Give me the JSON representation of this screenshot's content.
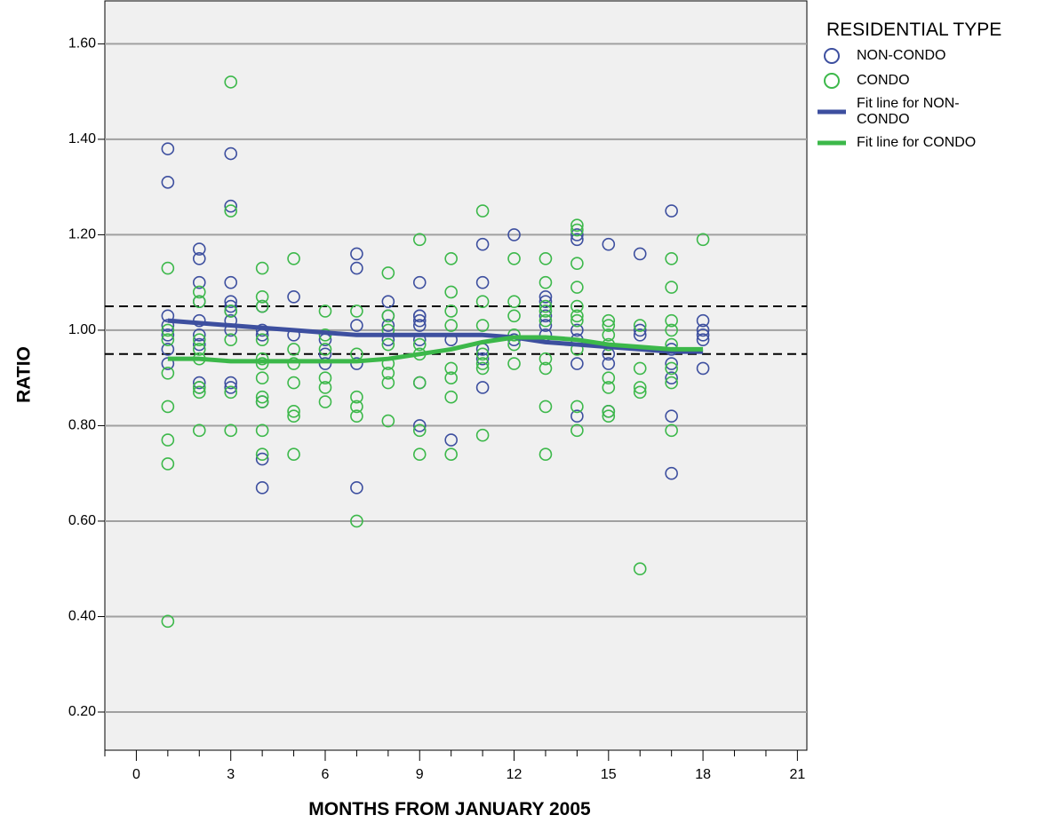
{
  "chart_data": {
    "type": "scatter",
    "xlabel": "MONTHS FROM JANUARY 2005",
    "ylabel": "RATIO",
    "legend_title": "RESIDENTIAL TYPE",
    "legend_position": "outside-right",
    "grid": true,
    "background": "#f0f0f0",
    "xlim": [
      -1,
      21.3
    ],
    "ylim": [
      0.12,
      1.69
    ],
    "xticks": [
      0,
      3,
      6,
      9,
      12,
      15,
      18,
      21
    ],
    "xminorticks": [
      -1,
      1,
      2,
      4,
      5,
      7,
      8,
      10,
      11,
      13,
      14,
      16,
      17,
      19,
      20
    ],
    "yticks": [
      {
        "value": 0.2,
        "label": "0.20"
      },
      {
        "value": 0.4,
        "label": "0.40"
      },
      {
        "value": 0.6,
        "label": "0.60"
      },
      {
        "value": 0.8,
        "label": "0.80"
      },
      {
        "value": 1.0,
        "label": "1.00"
      },
      {
        "value": 1.2,
        "label": "1.20"
      },
      {
        "value": 1.4,
        "label": "1.40"
      },
      {
        "value": 1.6,
        "label": "1.60"
      }
    ],
    "reference_lines": [
      1.05,
      0.95
    ],
    "series": [
      {
        "name": "NON-CONDO",
        "kind": "scatter",
        "color": "#3d4f9f",
        "x": [
          1,
          1,
          1,
          1,
          1,
          1,
          1,
          2,
          2,
          2,
          2,
          2,
          2,
          2,
          2,
          2,
          3,
          3,
          3,
          3,
          3,
          3,
          3,
          3,
          3,
          3,
          4,
          4,
          4,
          4,
          4,
          4,
          5,
          5,
          6,
          6,
          6,
          7,
          7,
          7,
          7,
          7,
          8,
          8,
          8,
          8,
          9,
          9,
          9,
          9,
          9,
          9,
          9,
          9,
          10,
          10,
          11,
          11,
          11,
          11,
          11,
          12,
          12,
          13,
          13,
          13,
          13,
          13,
          14,
          14,
          14,
          14,
          14,
          14,
          15,
          15,
          15,
          15,
          16,
          16,
          16,
          17,
          17,
          17,
          17,
          17,
          17,
          18,
          18,
          18,
          18,
          18
        ],
        "y": [
          1.38,
          1.31,
          1.03,
          1.01,
          0.99,
          0.96,
          0.93,
          1.17,
          1.15,
          1.1,
          1.06,
          1.02,
          0.99,
          0.97,
          0.89,
          0.88,
          1.37,
          1.26,
          1.1,
          1.06,
          1.05,
          1.04,
          1.02,
          1.0,
          0.89,
          0.88,
          1.05,
          1.0,
          0.99,
          0.85,
          0.73,
          0.67,
          1.07,
          0.99,
          0.98,
          0.95,
          0.93,
          1.16,
          1.13,
          1.01,
          0.93,
          0.67,
          1.06,
          1.03,
          1.01,
          0.98,
          1.1,
          1.03,
          1.03,
          1.02,
          1.01,
          0.98,
          0.89,
          0.8,
          0.98,
          0.77,
          1.18,
          1.1,
          0.96,
          0.94,
          0.88,
          1.2,
          0.98,
          1.07,
          1.06,
          1.03,
          1.01,
          0.99,
          1.2,
          1.19,
          1.0,
          0.98,
          0.93,
          0.82,
          1.18,
          0.95,
          0.93,
          0.83,
          1.16,
          1.0,
          0.99,
          1.25,
          0.96,
          0.93,
          0.9,
          0.82,
          0.7,
          1.02,
          1.0,
          0.99,
          0.98,
          0.92
        ]
      },
      {
        "name": "CONDO",
        "kind": "scatter",
        "color": "#3cb84a",
        "x": [
          1,
          1,
          1,
          1,
          1,
          1,
          1,
          1,
          2,
          2,
          2,
          2,
          2,
          2,
          2,
          2,
          3,
          3,
          3,
          3,
          3,
          3,
          4,
          4,
          4,
          4,
          4,
          4,
          4,
          4,
          4,
          4,
          4,
          5,
          5,
          5,
          5,
          5,
          5,
          5,
          6,
          6,
          6,
          6,
          6,
          6,
          7,
          7,
          7,
          7,
          7,
          7,
          8,
          8,
          8,
          8,
          8,
          8,
          8,
          8,
          9,
          9,
          9,
          9,
          9,
          9,
          10,
          10,
          10,
          10,
          10,
          10,
          10,
          10,
          11,
          11,
          11,
          11,
          11,
          11,
          11,
          12,
          12,
          12,
          12,
          12,
          12,
          13,
          13,
          13,
          13,
          13,
          13,
          13,
          13,
          13,
          14,
          14,
          14,
          14,
          14,
          14,
          14,
          14,
          14,
          14,
          15,
          15,
          15,
          15,
          15,
          15,
          15,
          15,
          16,
          16,
          16,
          16,
          16,
          17,
          17,
          17,
          17,
          17,
          17,
          17,
          17,
          18
        ],
        "y": [
          1.13,
          1.0,
          0.98,
          0.91,
          0.84,
          0.77,
          0.72,
          0.39,
          1.08,
          1.06,
          0.98,
          0.96,
          0.94,
          0.88,
          0.87,
          0.79,
          1.52,
          1.25,
          1.04,
          0.98,
          0.87,
          0.79,
          1.13,
          1.07,
          1.05,
          0.98,
          0.94,
          0.93,
          0.9,
          0.86,
          0.85,
          0.79,
          0.74,
          1.15,
          0.96,
          0.93,
          0.89,
          0.83,
          0.82,
          0.74,
          1.04,
          0.99,
          0.96,
          0.9,
          0.88,
          0.85,
          1.04,
          0.95,
          0.86,
          0.84,
          0.82,
          0.6,
          1.12,
          1.03,
          1.0,
          0.97,
          0.93,
          0.91,
          0.89,
          0.81,
          1.19,
          0.97,
          0.95,
          0.89,
          0.79,
          0.74,
          1.15,
          1.08,
          1.04,
          1.01,
          0.92,
          0.9,
          0.86,
          0.74,
          1.25,
          1.06,
          1.01,
          0.95,
          0.93,
          0.92,
          0.78,
          1.15,
          1.06,
          1.03,
          0.99,
          0.97,
          0.93,
          1.15,
          1.1,
          1.05,
          1.04,
          1.02,
          0.94,
          0.92,
          0.84,
          0.74,
          1.22,
          1.21,
          1.14,
          1.09,
          1.05,
          1.03,
          1.02,
          0.96,
          0.84,
          0.79,
          1.02,
          1.01,
          0.99,
          0.97,
          0.9,
          0.88,
          0.83,
          0.82,
          1.01,
          0.92,
          0.88,
          0.87,
          0.5,
          1.15,
          1.09,
          1.02,
          1.0,
          0.97,
          0.92,
          0.89,
          0.79,
          1.19
        ]
      },
      {
        "name": "Fit line for NON-CONDO",
        "kind": "line",
        "color": "#3d4f9f",
        "x": [
          1,
          2,
          3,
          4,
          5,
          6,
          7,
          8,
          9,
          10,
          11,
          12,
          13,
          14,
          15,
          16,
          17,
          18
        ],
        "y": [
          1.02,
          1.015,
          1.01,
          1.005,
          1.0,
          0.995,
          0.99,
          0.99,
          0.99,
          0.99,
          0.99,
          0.985,
          0.975,
          0.97,
          0.965,
          0.96,
          0.955,
          0.955
        ]
      },
      {
        "name": "Fit line for CONDO",
        "kind": "line",
        "color": "#3cb84a",
        "x": [
          1,
          2,
          3,
          4,
          5,
          6,
          7,
          8,
          9,
          10,
          11,
          12,
          13,
          14,
          15,
          16,
          17,
          18
        ],
        "y": [
          0.94,
          0.94,
          0.935,
          0.935,
          0.935,
          0.935,
          0.935,
          0.94,
          0.95,
          0.96,
          0.975,
          0.985,
          0.985,
          0.98,
          0.97,
          0.965,
          0.96,
          0.96
        ]
      }
    ]
  }
}
